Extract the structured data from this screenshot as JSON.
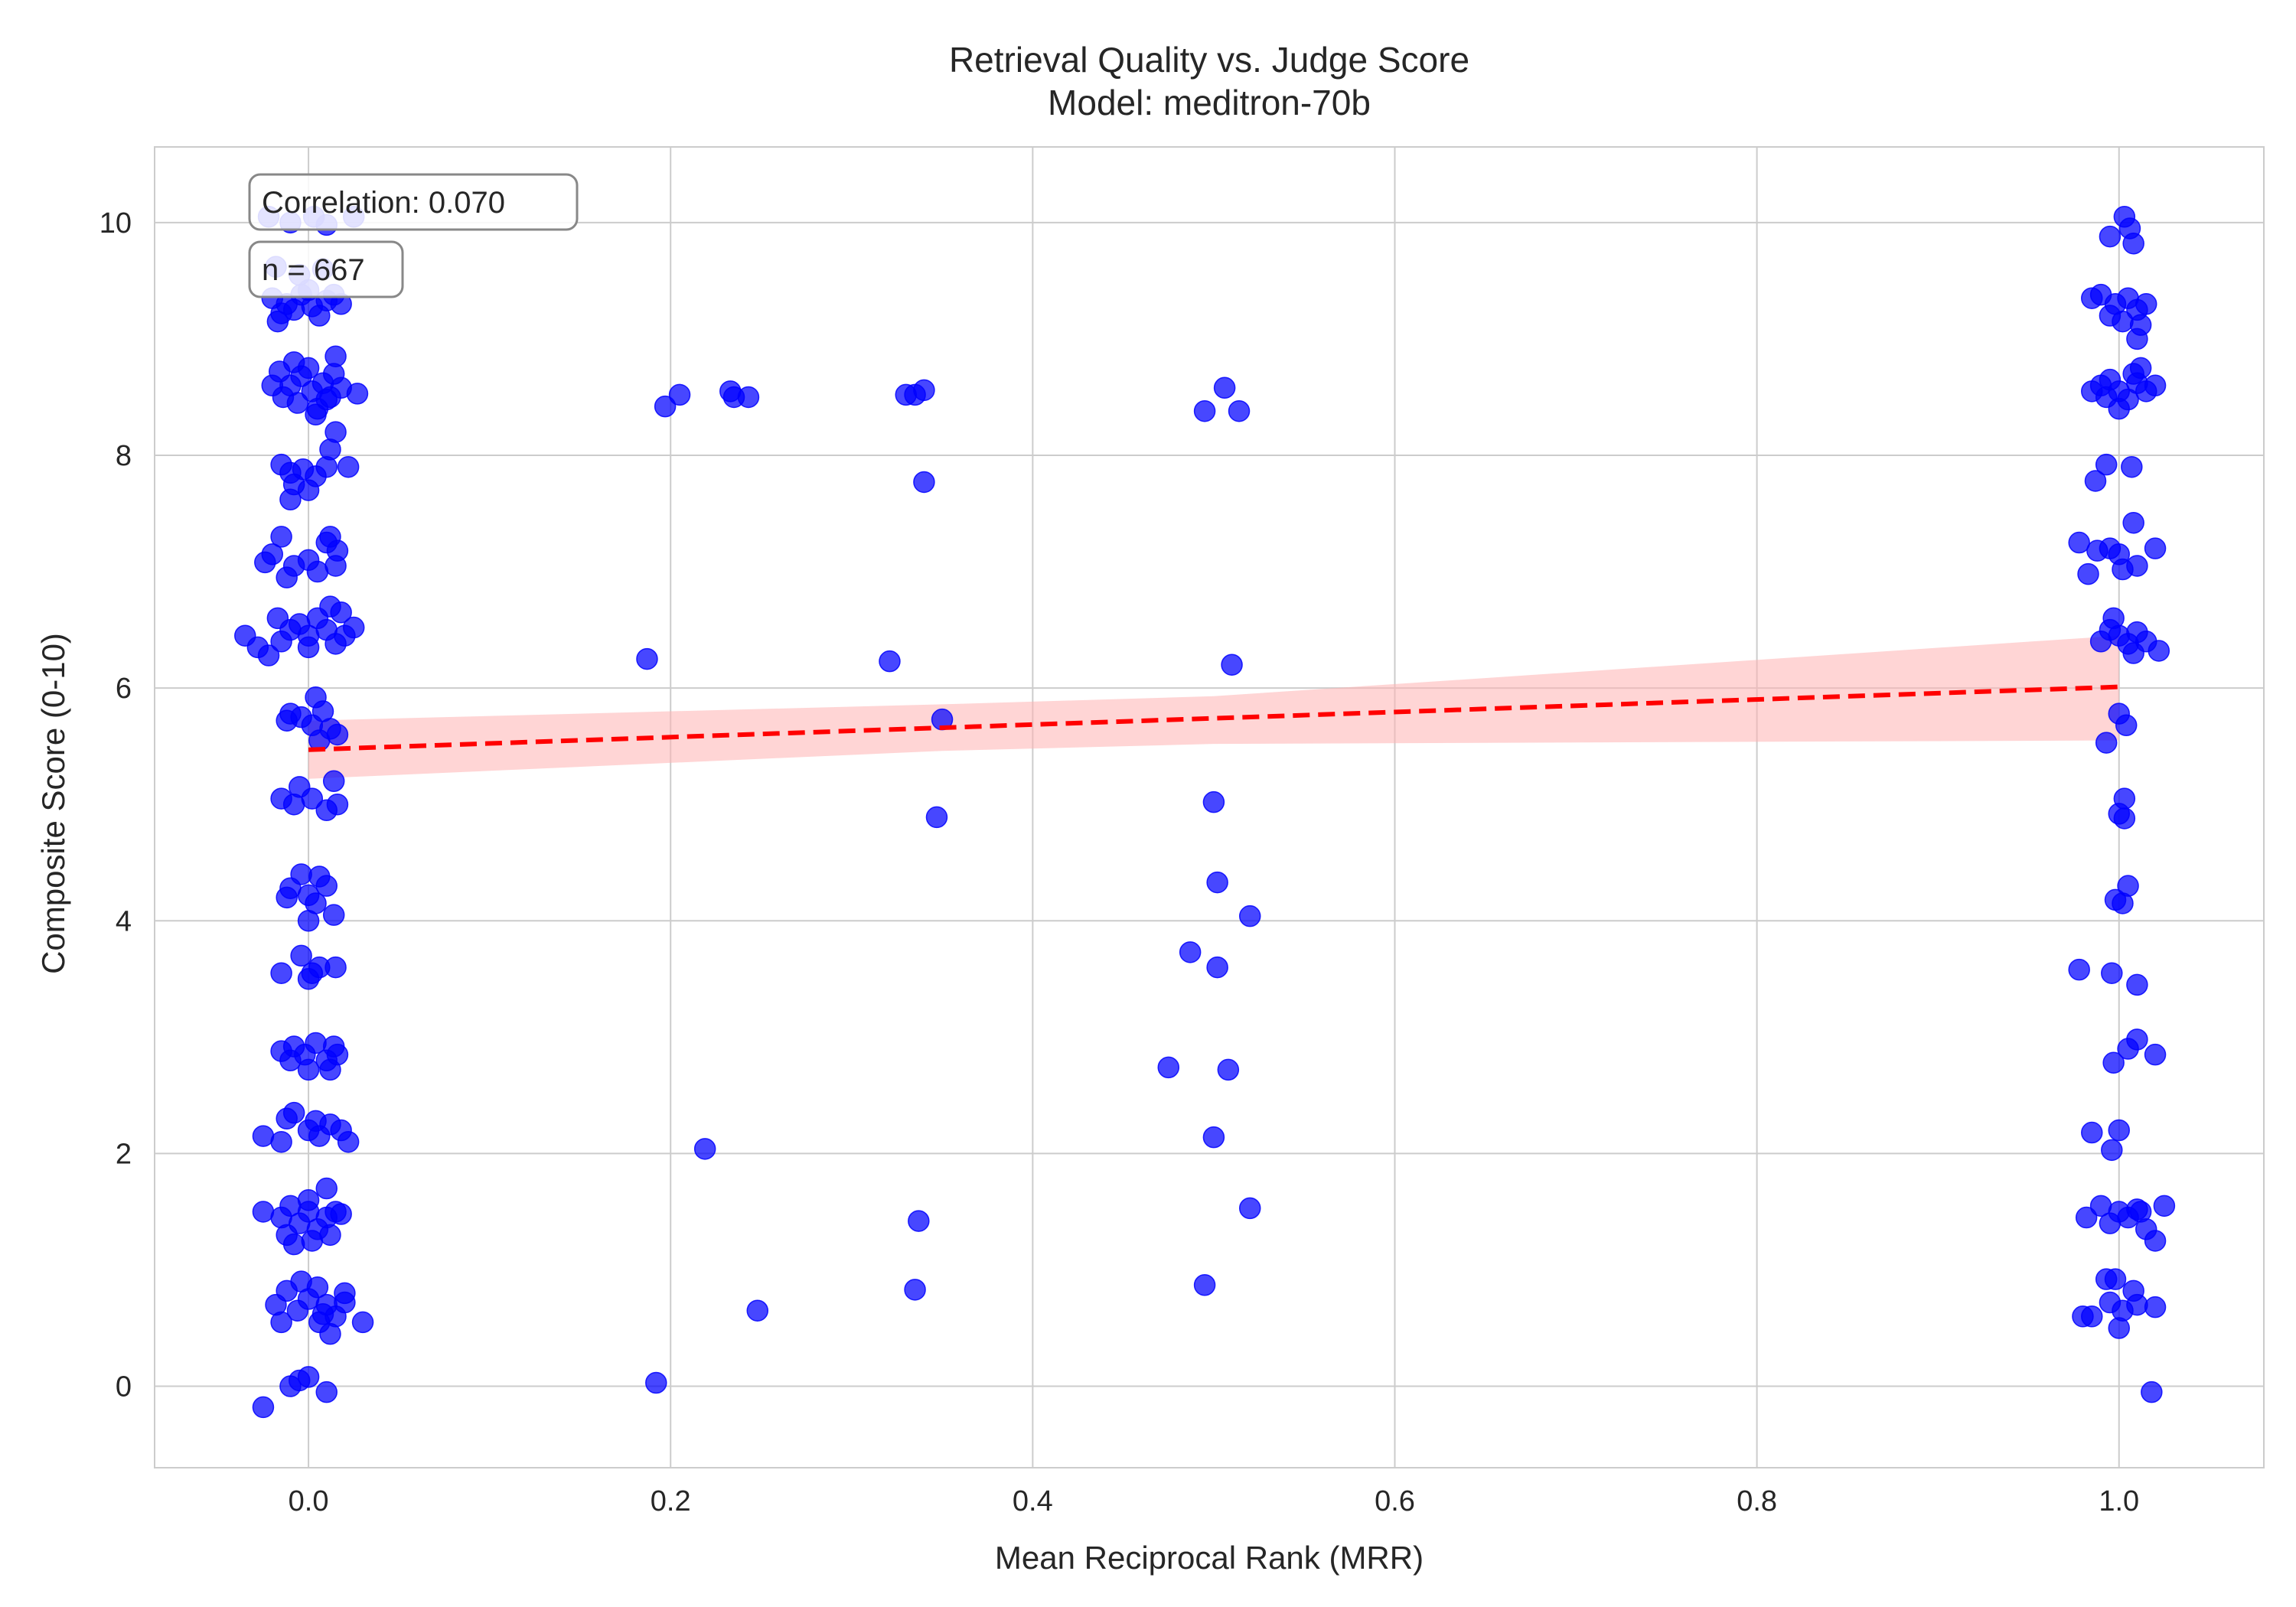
{
  "chart_data": {
    "type": "scatter",
    "title": "Retrieval Quality vs. Judge Score",
    "subtitle": "Model: meditron-70b",
    "xlabel": "Mean Reciprocal Rank (MRR)",
    "ylabel": "Composite Score (0-10)",
    "xlim": [
      -0.085,
      1.08
    ],
    "ylim": [
      -0.7,
      10.65
    ],
    "x_ticks": [
      0.0,
      0.2,
      0.4,
      0.6,
      0.8,
      1.0
    ],
    "x_tick_labels": [
      "0.0",
      "0.2",
      "0.4",
      "0.6",
      "0.8",
      "1.0"
    ],
    "y_ticks": [
      0,
      2,
      4,
      6,
      8,
      10
    ],
    "y_tick_labels": [
      "0",
      "2",
      "4",
      "6",
      "8",
      "10"
    ],
    "grid": true,
    "annotations": [
      "Correlation: 0.070",
      "n = 667"
    ],
    "colors": {
      "points": "#0000ff",
      "trend": "#ff0000",
      "band": "#ffb3b3",
      "grid": "#cccccc"
    },
    "trend_line": {
      "style": "dashed",
      "x": [
        0.0,
        1.0
      ],
      "y": [
        5.47,
        6.01
      ]
    },
    "confidence_band": {
      "x": [
        0.0,
        0.35,
        0.5,
        1.0
      ],
      "lower": [
        5.22,
        5.46,
        5.52,
        5.55
      ],
      "upper": [
        5.72,
        5.86,
        5.93,
        6.45
      ]
    },
    "series": [
      {
        "points": [
          [
            -0.022,
            10.05
          ],
          [
            -0.01,
            10.0
          ],
          [
            0.003,
            10.05
          ],
          [
            0.01,
            9.98
          ],
          [
            0.025,
            10.05
          ],
          [
            -0.018,
            9.62
          ],
          [
            -0.005,
            9.55
          ],
          [
            0.008,
            9.6
          ],
          [
            -0.02,
            9.35
          ],
          [
            -0.012,
            9.3
          ],
          [
            -0.004,
            9.38
          ],
          [
            0.002,
            9.28
          ],
          [
            0.01,
            9.33
          ],
          [
            0.018,
            9.3
          ],
          [
            -0.015,
            9.22
          ],
          [
            0.006,
            9.2
          ],
          [
            -0.008,
            9.25
          ],
          [
            0.014,
            9.38
          ],
          [
            -0.017,
            9.15
          ],
          [
            0.0,
            9.42
          ],
          [
            -0.016,
            8.72
          ],
          [
            -0.01,
            8.6
          ],
          [
            -0.004,
            8.68
          ],
          [
            0.002,
            8.55
          ],
          [
            0.008,
            8.62
          ],
          [
            0.014,
            8.7
          ],
          [
            0.018,
            8.58
          ],
          [
            -0.014,
            8.5
          ],
          [
            -0.006,
            8.45
          ],
          [
            0.005,
            8.4
          ],
          [
            0.012,
            8.5
          ],
          [
            0.027,
            8.53
          ],
          [
            -0.02,
            8.6
          ],
          [
            0.0,
            8.75
          ],
          [
            0.015,
            8.85
          ],
          [
            -0.008,
            8.8
          ],
          [
            0.004,
            8.35
          ],
          [
            0.01,
            8.48
          ],
          [
            0.015,
            8.2
          ],
          [
            0.012,
            8.05
          ],
          [
            -0.015,
            7.92
          ],
          [
            -0.01,
            7.85
          ],
          [
            -0.003,
            7.88
          ],
          [
            0.004,
            7.82
          ],
          [
            0.01,
            7.9
          ],
          [
            0.022,
            7.9
          ],
          [
            -0.008,
            7.75
          ],
          [
            0.0,
            7.7
          ],
          [
            -0.01,
            7.62
          ],
          [
            -0.015,
            7.3
          ],
          [
            -0.02,
            7.15
          ],
          [
            -0.008,
            7.05
          ],
          [
            0.0,
            7.1
          ],
          [
            0.01,
            7.25
          ],
          [
            0.016,
            7.18
          ],
          [
            -0.024,
            7.08
          ],
          [
            -0.012,
            6.95
          ],
          [
            0.005,
            7.0
          ],
          [
            0.015,
            7.05
          ],
          [
            0.012,
            7.3
          ],
          [
            -0.035,
            6.45
          ],
          [
            -0.028,
            6.35
          ],
          [
            -0.022,
            6.28
          ],
          [
            -0.015,
            6.4
          ],
          [
            -0.01,
            6.5
          ],
          [
            -0.005,
            6.55
          ],
          [
            0.0,
            6.45
          ],
          [
            0.005,
            6.6
          ],
          [
            0.01,
            6.5
          ],
          [
            0.015,
            6.38
          ],
          [
            0.02,
            6.45
          ],
          [
            0.025,
            6.52
          ],
          [
            -0.017,
            6.6
          ],
          [
            0.012,
            6.7
          ],
          [
            0.0,
            6.35
          ],
          [
            0.018,
            6.65
          ],
          [
            0.004,
            5.92
          ],
          [
            0.008,
            5.8
          ],
          [
            -0.01,
            5.78
          ],
          [
            -0.004,
            5.75
          ],
          [
            0.002,
            5.68
          ],
          [
            0.012,
            5.65
          ],
          [
            0.006,
            5.55
          ],
          [
            0.016,
            5.6
          ],
          [
            -0.012,
            5.72
          ],
          [
            0.014,
            5.2
          ],
          [
            -0.005,
            5.15
          ],
          [
            -0.015,
            5.05
          ],
          [
            -0.008,
            5.0
          ],
          [
            0.002,
            5.05
          ],
          [
            0.01,
            4.95
          ],
          [
            0.016,
            5.0
          ],
          [
            -0.01,
            4.28
          ],
          [
            -0.004,
            4.4
          ],
          [
            0.0,
            4.22
          ],
          [
            0.006,
            4.38
          ],
          [
            0.01,
            4.3
          ],
          [
            -0.012,
            4.2
          ],
          [
            0.004,
            4.15
          ],
          [
            0.014,
            4.05
          ],
          [
            0.0,
            4.0
          ],
          [
            -0.015,
            3.55
          ],
          [
            -0.004,
            3.7
          ],
          [
            0.002,
            3.55
          ],
          [
            0.006,
            3.6
          ],
          [
            0.015,
            3.6
          ],
          [
            0.0,
            3.5
          ],
          [
            -0.015,
            2.88
          ],
          [
            -0.008,
            2.92
          ],
          [
            -0.002,
            2.85
          ],
          [
            0.004,
            2.95
          ],
          [
            0.01,
            2.8
          ],
          [
            0.016,
            2.85
          ],
          [
            0.0,
            2.72
          ],
          [
            -0.01,
            2.8
          ],
          [
            0.014,
            2.92
          ],
          [
            0.012,
            2.72
          ],
          [
            -0.025,
            2.15
          ],
          [
            -0.015,
            2.1
          ],
          [
            -0.008,
            2.35
          ],
          [
            0.0,
            2.2
          ],
          [
            0.006,
            2.15
          ],
          [
            0.012,
            2.25
          ],
          [
            0.018,
            2.2
          ],
          [
            0.022,
            2.1
          ],
          [
            -0.012,
            2.3
          ],
          [
            0.004,
            2.28
          ],
          [
            -0.025,
            1.5
          ],
          [
            -0.015,
            1.45
          ],
          [
            -0.01,
            1.55
          ],
          [
            -0.005,
            1.4
          ],
          [
            0.0,
            1.5
          ],
          [
            0.005,
            1.35
          ],
          [
            0.01,
            1.45
          ],
          [
            0.015,
            1.5
          ],
          [
            0.018,
            1.48
          ],
          [
            -0.012,
            1.3
          ],
          [
            0.002,
            1.25
          ],
          [
            0.01,
            1.7
          ],
          [
            0.0,
            1.6
          ],
          [
            -0.008,
            1.22
          ],
          [
            0.012,
            1.3
          ],
          [
            -0.018,
            0.7
          ],
          [
            -0.012,
            0.82
          ],
          [
            -0.006,
            0.65
          ],
          [
            0.0,
            0.75
          ],
          [
            0.005,
            0.85
          ],
          [
            0.01,
            0.7
          ],
          [
            0.015,
            0.6
          ],
          [
            0.02,
            0.72
          ],
          [
            -0.015,
            0.55
          ],
          [
            0.006,
            0.55
          ],
          [
            0.012,
            0.45
          ],
          [
            0.02,
            0.8
          ],
          [
            0.03,
            0.55
          ],
          [
            -0.004,
            0.9
          ],
          [
            0.008,
            0.62
          ],
          [
            -0.01,
            0.0
          ],
          [
            -0.005,
            0.05
          ],
          [
            0.0,
            0.08
          ],
          [
            0.01,
            -0.05
          ],
          [
            -0.025,
            -0.18
          ],
          [
            0.197,
            8.42
          ],
          [
            0.205,
            8.52
          ],
          [
            0.233,
            8.55
          ],
          [
            0.235,
            8.5
          ],
          [
            0.243,
            8.5
          ],
          [
            0.33,
            8.52
          ],
          [
            0.335,
            8.52
          ],
          [
            0.34,
            8.56
          ],
          [
            0.34,
            7.77
          ],
          [
            0.495,
            8.38
          ],
          [
            0.506,
            8.58
          ],
          [
            0.514,
            8.38
          ],
          [
            0.187,
            6.25
          ],
          [
            0.321,
            6.23
          ],
          [
            0.51,
            6.2
          ],
          [
            0.35,
            5.73
          ],
          [
            0.347,
            4.89
          ],
          [
            0.5,
            5.02
          ],
          [
            0.502,
            4.33
          ],
          [
            0.52,
            4.04
          ],
          [
            0.487,
            3.73
          ],
          [
            0.502,
            3.6
          ],
          [
            0.475,
            2.74
          ],
          [
            0.508,
            2.72
          ],
          [
            0.219,
            2.04
          ],
          [
            0.5,
            2.14
          ],
          [
            0.337,
            1.42
          ],
          [
            0.52,
            1.53
          ],
          [
            0.335,
            0.83
          ],
          [
            0.495,
            0.87
          ],
          [
            0.248,
            0.65
          ],
          [
            0.192,
            0.03
          ],
          [
            1.003,
            10.05
          ],
          [
            1.006,
            9.95
          ],
          [
            1.008,
            9.82
          ],
          [
            0.995,
            9.88
          ],
          [
            0.985,
            9.35
          ],
          [
            0.99,
            9.38
          ],
          [
            0.998,
            9.3
          ],
          [
            1.005,
            9.35
          ],
          [
            1.01,
            9.25
          ],
          [
            1.015,
            9.3
          ],
          [
            0.995,
            9.2
          ],
          [
            1.002,
            9.15
          ],
          [
            1.012,
            9.12
          ],
          [
            1.01,
            9.0
          ],
          [
            0.985,
            8.55
          ],
          [
            0.99,
            8.6
          ],
          [
            0.995,
            8.65
          ],
          [
            1.0,
            8.55
          ],
          [
            1.005,
            8.48
          ],
          [
            1.01,
            8.62
          ],
          [
            1.015,
            8.55
          ],
          [
            1.02,
            8.6
          ],
          [
            1.0,
            8.4
          ],
          [
            1.008,
            8.7
          ],
          [
            1.012,
            8.75
          ],
          [
            0.993,
            8.5
          ],
          [
            0.987,
            7.78
          ],
          [
            0.993,
            7.92
          ],
          [
            1.007,
            7.9
          ],
          [
            0.978,
            7.25
          ],
          [
            0.988,
            7.18
          ],
          [
            0.995,
            7.2
          ],
          [
            1.0,
            7.15
          ],
          [
            1.008,
            7.42
          ],
          [
            1.02,
            7.2
          ],
          [
            0.983,
            6.98
          ],
          [
            1.002,
            7.02
          ],
          [
            1.01,
            7.05
          ],
          [
            0.99,
            6.4
          ],
          [
            0.995,
            6.5
          ],
          [
            1.0,
            6.45
          ],
          [
            1.005,
            6.38
          ],
          [
            1.01,
            6.48
          ],
          [
            1.015,
            6.4
          ],
          [
            1.022,
            6.32
          ],
          [
            0.997,
            6.6
          ],
          [
            1.008,
            6.3
          ],
          [
            1.0,
            5.78
          ],
          [
            1.004,
            5.68
          ],
          [
            0.993,
            5.53
          ],
          [
            1.003,
            5.05
          ],
          [
            1.0,
            4.92
          ],
          [
            1.003,
            4.88
          ],
          [
            1.005,
            4.3
          ],
          [
            0.998,
            4.18
          ],
          [
            1.002,
            4.15
          ],
          [
            0.978,
            3.58
          ],
          [
            0.996,
            3.55
          ],
          [
            1.01,
            3.45
          ],
          [
            1.01,
            2.98
          ],
          [
            1.005,
            2.9
          ],
          [
            0.997,
            2.78
          ],
          [
            1.02,
            2.85
          ],
          [
            0.985,
            2.18
          ],
          [
            1.0,
            2.2
          ],
          [
            0.996,
            2.03
          ],
          [
            0.982,
            1.45
          ],
          [
            0.99,
            1.55
          ],
          [
            0.995,
            1.4
          ],
          [
            1.0,
            1.5
          ],
          [
            1.005,
            1.45
          ],
          [
            1.01,
            1.52
          ],
          [
            1.015,
            1.35
          ],
          [
            1.02,
            1.25
          ],
          [
            1.025,
            1.55
          ],
          [
            1.012,
            1.5
          ],
          [
            0.993,
            0.92
          ],
          [
            0.998,
            0.92
          ],
          [
            0.995,
            0.72
          ],
          [
            1.002,
            0.65
          ],
          [
            1.008,
            0.82
          ],
          [
            1.01,
            0.7
          ],
          [
            1.02,
            0.68
          ],
          [
            0.98,
            0.6
          ],
          [
            0.985,
            0.6
          ],
          [
            1.0,
            0.5
          ],
          [
            1.018,
            -0.05
          ]
        ]
      }
    ]
  }
}
